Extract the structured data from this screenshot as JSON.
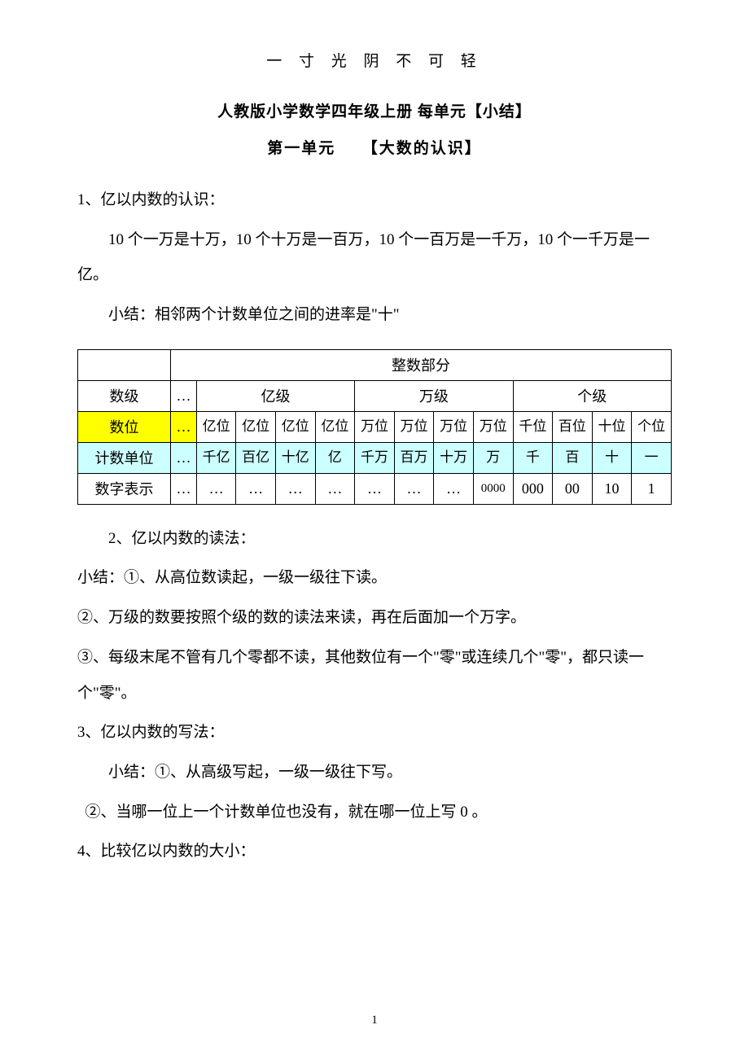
{
  "header": "一 寸 光 阴 不 可 轻",
  "title": "人教版小学数学四年级上册 每单元【小结】",
  "subtitle": "第一单元　　【大数的认识】",
  "p1": "1、亿以内数的认识：",
  "p2": "10 个一万是十万，10 个十万是一百万，10 个一百万是一千万，10 个一千万是一亿。",
  "p3": "小结：相邻两个计数单位之间的进率是\"十\"",
  "table": {
    "header_main": "整数部分",
    "row_level": {
      "label": "数级",
      "dots": "…",
      "groups": [
        "亿级",
        "万级",
        "个级"
      ]
    },
    "row_position": {
      "label": "数位",
      "dots": "…",
      "cells": [
        "亿位",
        "亿位",
        "亿位",
        "亿位",
        "万位",
        "万位",
        "万位",
        "万位",
        "千位",
        "百位",
        "十位",
        "个位"
      ]
    },
    "row_unit": {
      "label": "计数单位",
      "dots": "…",
      "cells": [
        "千亿",
        "百亿",
        "十亿",
        "亿",
        "千万",
        "百万",
        "十万",
        "万",
        "千",
        "百",
        "十",
        "一"
      ]
    },
    "row_digit": {
      "label": "数字表示",
      "dots": "…",
      "cells": [
        "…",
        "…",
        "…",
        "…",
        "…",
        "…",
        "…",
        "0000",
        "000",
        "00",
        "10",
        "1"
      ]
    }
  },
  "p4": "2、亿以内数的读法：",
  "p5": "小结：①、从高位数读起，一级一级往下读。",
  "p6": "②、万级的数要按照个级的数的读法来读，再在后面加一个万字。",
  "p7": "③、每级末尾不管有几个零都不读，其他数位有一个\"零\"或连续几个\"零\"，都只读一个\"零\"。",
  "p8": "3、亿以内数的写法：",
  "p9": "小结：①、从高级写起，一级一级往下写。",
  "p10": "②、当哪一位上一个计数单位也没有，就在哪一位上写 0 。",
  "p11": "4、比较亿以内数的大小：",
  "page_number": "1",
  "colors": {
    "highlight_yellow": "#ffff00",
    "highlight_blue": "#ccffff",
    "text": "#000000",
    "background": "#ffffff",
    "border": "#000000"
  }
}
